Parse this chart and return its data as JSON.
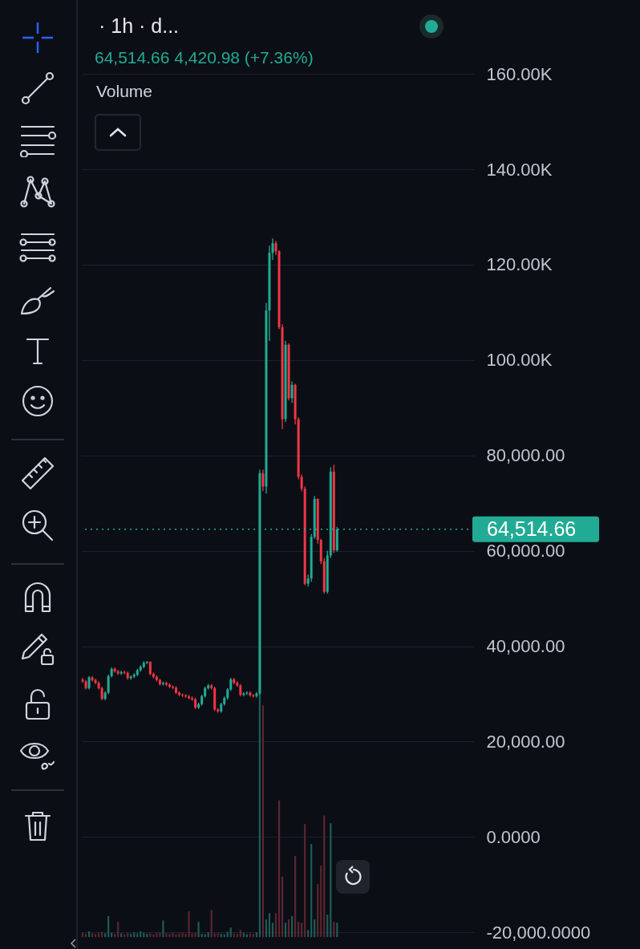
{
  "chart_data": {
    "type": "candlestick",
    "title": "· 1h · d...",
    "subtitle": "64,514.66 4,420.98 (+7.36%)",
    "annotations": [
      "Volume"
    ],
    "categories": [
      null,
      null,
      null,
      null,
      null,
      null,
      null,
      null,
      null,
      null,
      null,
      null,
      null,
      null,
      null,
      null,
      null,
      null,
      null,
      null,
      null,
      null,
      null,
      null,
      null,
      null,
      null,
      null,
      null,
      null,
      null,
      null,
      null,
      null,
      null,
      null,
      null,
      null,
      null,
      null,
      null,
      null,
      null,
      null,
      null,
      null,
      null,
      null,
      null,
      null,
      null,
      null,
      null,
      null,
      null,
      null,
      null,
      null,
      null,
      null,
      null,
      null,
      null,
      null,
      null,
      null,
      null,
      null,
      null,
      null,
      null,
      null,
      null,
      null,
      null,
      null,
      null,
      null,
      null,
      null,
      null,
      null,
      null,
      null,
      null,
      null,
      null,
      null,
      null,
      null,
      null,
      null,
      null,
      null,
      null,
      null,
      null,
      null,
      null,
      null,
      null,
      null,
      null,
      null,
      null,
      null,
      null,
      null,
      null,
      null,
      null,
      null,
      null,
      null,
      null,
      null,
      null,
      null,
      null,
      null,
      null,
      null
    ],
    "ohlc": [
      [
        33000,
        33300,
        32300,
        32605
      ],
      [
        32605,
        32900,
        30900,
        31205
      ],
      [
        31205,
        33750,
        30900,
        33446
      ],
      [
        33446,
        33750,
        32590,
        32886
      ],
      [
        32886,
        33190,
        32025,
        32325
      ],
      [
        32325,
        32625,
        30905,
        31205
      ],
      [
        31205,
        31505,
        28664,
        28964
      ],
      [
        28964,
        30555,
        28664,
        30253
      ],
      [
        30253,
        34025,
        29953,
        33726
      ],
      [
        33726,
        35540,
        33425,
        35238
      ],
      [
        35238,
        35540,
        34435,
        34735
      ],
      [
        34735,
        35035,
        33985,
        34287
      ],
      [
        34287,
        34870,
        33985,
        34567
      ],
      [
        34567,
        34870,
        34100,
        34399
      ],
      [
        34399,
        34700,
        32980,
        33278
      ],
      [
        33278,
        33915,
        32980,
        33614
      ],
      [
        33614,
        34310,
        33315,
        34007
      ],
      [
        34007,
        35260,
        33705,
        34959
      ],
      [
        34959,
        35990,
        34660,
        35687
      ],
      [
        35687,
        36830,
        35385,
        36527
      ],
      [
        36527,
        36900,
        36225,
        36700
      ],
      [
        36700,
        36830,
        33875,
        34175
      ],
      [
        34175,
        34475,
        33258,
        33558
      ],
      [
        33558,
        33860,
        32585,
        32886
      ],
      [
        32886,
        33185,
        31745,
        32045
      ],
      [
        32045,
        32570,
        31745,
        32269
      ],
      [
        32269,
        32570,
        31633,
        31933
      ],
      [
        31933,
        32235,
        31185,
        31485
      ],
      [
        31485,
        31785,
        31000,
        31300
      ],
      [
        31300,
        31600,
        29953,
        30253
      ],
      [
        30253,
        30555,
        29505,
        29805
      ],
      [
        29805,
        30105,
        29350,
        29650
      ],
      [
        29650,
        29950,
        29169,
        29469
      ],
      [
        29469,
        29770,
        28833,
        29133
      ],
      [
        29133,
        29435,
        28553,
        28853
      ],
      [
        28853,
        29155,
        26816,
        27116
      ],
      [
        27116,
        28145,
        26816,
        27844
      ],
      [
        27844,
        29825,
        27544,
        29525
      ],
      [
        29525,
        31505,
        29225,
        31205
      ],
      [
        31205,
        32065,
        30905,
        31765
      ],
      [
        31765,
        32065,
        30905,
        31205
      ],
      [
        31205,
        31505,
        26423,
        26723
      ],
      [
        26723,
        27025,
        26031,
        26331
      ],
      [
        26331,
        28145,
        26031,
        27844
      ],
      [
        27844,
        29435,
        27544,
        29133
      ],
      [
        29133,
        31225,
        28833,
        30925
      ],
      [
        30925,
        33355,
        30625,
        33054
      ],
      [
        33054,
        33355,
        32025,
        32325
      ],
      [
        32325,
        32625,
        31465,
        31765
      ],
      [
        31765,
        32065,
        29505,
        29805
      ],
      [
        29805,
        30385,
        29505,
        30085
      ],
      [
        30085,
        30555,
        29785,
        30253
      ],
      [
        30253,
        30555,
        29393,
        29693
      ],
      [
        29693,
        29995,
        29225,
        29525
      ],
      [
        29525,
        30385,
        29225,
        30085
      ],
      [
        30085,
        77000,
        29800,
        76300
      ],
      [
        76300,
        77000,
        72500,
        73500
      ],
      [
        73500,
        112000,
        72000,
        110400
      ],
      [
        110400,
        124000,
        104000,
        122500
      ],
      [
        122500,
        125500,
        121000,
        124500
      ],
      [
        124500,
        125000,
        122000,
        122800
      ],
      [
        122800,
        123000,
        106500,
        106900
      ],
      [
        106900,
        107500,
        85500,
        87600
      ],
      [
        87600,
        104000,
        87000,
        103200
      ],
      [
        103200,
        103500,
        91500,
        92000
      ],
      [
        92000,
        95500,
        91000,
        94800
      ],
      [
        94800,
        95000,
        86500,
        87600
      ],
      [
        87600,
        88000,
        75000,
        75500
      ],
      [
        75500,
        76000,
        72500,
        73000
      ],
      [
        73000,
        73500,
        52800,
        53100
      ],
      [
        53100,
        55000,
        52500,
        54200
      ],
      [
        54200,
        63500,
        53500,
        62900
      ],
      [
        62900,
        71500,
        62500,
        70900
      ],
      [
        70900,
        71000,
        61500,
        62300
      ],
      [
        62300,
        62500,
        57200,
        57800
      ],
      [
        57800,
        58500,
        51000,
        51400
      ],
      [
        51400,
        60000,
        51000,
        59000
      ],
      [
        59000,
        77500,
        58500,
        76600
      ],
      [
        76600,
        78000,
        59500,
        60093.68
      ],
      [
        60093.68,
        65000,
        59800,
        64514.66
      ],
      null,
      null,
      null,
      null,
      null,
      null,
      null,
      null,
      null,
      null,
      null,
      null,
      null,
      null,
      null,
      null,
      null,
      null,
      null,
      null,
      null,
      null,
      null,
      null,
      null,
      null,
      null,
      null,
      null,
      null,
      null,
      null,
      null,
      null,
      null,
      null,
      null,
      null,
      null,
      null,
      null,
      null
    ],
    "colors": [
      "#f23645",
      "#f23645",
      "#22ab94",
      "#f23645",
      "#f23645",
      "#f23645",
      "#f23645",
      "#22ab94",
      "#22ab94",
      "#22ab94",
      "#f23645",
      "#f23645",
      "#22ab94",
      "#f23645",
      "#f23645",
      "#22ab94",
      "#22ab94",
      "#22ab94",
      "#22ab94",
      "#22ab94",
      "#22ab94",
      "#f23645",
      "#f23645",
      "#f23645",
      "#f23645",
      "#22ab94",
      "#f23645",
      "#f23645",
      "#f23645",
      "#f23645",
      "#f23645",
      "#f23645",
      "#f23645",
      "#f23645",
      "#f23645",
      "#f23645",
      "#22ab94",
      "#22ab94",
      "#22ab94",
      "#22ab94",
      "#f23645",
      "#f23645",
      "#f23645",
      "#22ab94",
      "#22ab94",
      "#22ab94",
      "#22ab94",
      "#f23645",
      "#f23645",
      "#f23645",
      "#22ab94",
      "#22ab94",
      "#f23645",
      "#f23645",
      "#22ab94",
      "#22ab94",
      "#f23645",
      "#22ab94",
      "#22ab94",
      "#22ab94",
      "#f23645",
      "#f23645",
      "#f23645",
      "#22ab94",
      "#f23645",
      "#22ab94",
      "#f23645",
      "#f23645",
      "#f23645",
      "#f23645",
      "#22ab94",
      "#22ab94",
      "#22ab94",
      "#f23645",
      "#f23645",
      "#f23645",
      "#22ab94",
      "#22ab94",
      "#f23645",
      "#22ab94",
      null,
      null,
      null,
      null,
      null,
      null,
      null,
      null,
      null,
      null,
      null,
      null,
      null,
      null,
      null,
      null,
      null,
      null,
      null,
      null,
      null,
      null,
      null,
      null,
      null,
      null,
      null,
      null,
      null,
      null,
      null,
      null,
      null,
      null,
      null,
      null,
      null,
      null,
      null,
      null,
      null,
      null
    ],
    "series": [
      {
        "type": "bar",
        "values": [
          900,
          700,
          1200,
          800,
          600,
          900,
          1100,
          800,
          4400,
          900,
          700,
          3200,
          800,
          600,
          900,
          700,
          1000,
          800,
          1200,
          900,
          700,
          800,
          600,
          900,
          1000,
          3500,
          800,
          700,
          900,
          600,
          800,
          1000,
          700,
          5400,
          800,
          900,
          3200,
          700,
          600,
          1000,
          5700,
          800,
          900,
          700,
          600,
          1100,
          2000,
          800,
          700,
          1500,
          900,
          600,
          800,
          700,
          1000,
          52000,
          48600,
          3700,
          5000,
          3000,
          5000,
          28700,
          12700,
          3000,
          3700,
          4400,
          17000,
          3200,
          3000,
          23700,
          1500,
          19500,
          3700,
          11100,
          15000,
          25500,
          4700,
          23900,
          3200,
          3000,
          null,
          null,
          null,
          null,
          null,
          null,
          null,
          null,
          null,
          null,
          null,
          null,
          null,
          null,
          null,
          null,
          null,
          null,
          null,
          null,
          null,
          null,
          null,
          null,
          null,
          null,
          null,
          null,
          null,
          null,
          null,
          null,
          null,
          null,
          null,
          null,
          null,
          null,
          null,
          null,
          null,
          null
        ],
        "base": [
          -21000,
          -21000,
          -21000,
          -21000,
          -21000,
          -21000,
          -21000,
          -21000,
          -21000,
          -21000,
          -21000,
          -21000,
          -21000,
          -21000,
          -21000,
          -21000,
          -21000,
          -21000,
          -21000,
          -21000,
          -21000,
          -21000,
          -21000,
          -21000,
          -21000,
          -21000,
          -21000,
          -21000,
          -21000,
          -21000,
          -21000,
          -21000,
          -21000,
          -21000,
          -21000,
          -21000,
          -21000,
          -21000,
          -21000,
          -21000,
          -21000,
          -21000,
          -21000,
          -21000,
          -21000,
          -21000,
          -21000,
          -21000,
          -21000,
          -21000,
          -21000,
          -21000,
          -21000,
          -21000,
          -21000,
          -21000,
          -21000,
          -21000,
          -21000,
          -21000,
          -21000,
          -21000,
          -21000,
          -21000,
          -21000,
          -21000,
          -21000,
          -21000,
          -21000,
          -21000,
          -21000,
          -21000,
          -21000,
          -21000,
          -21000,
          -21000,
          -21000,
          -21000,
          -21000,
          -21000,
          null,
          null,
          null,
          null,
          null,
          null,
          null,
          null,
          null,
          null,
          null,
          null,
          null,
          null,
          null,
          null,
          null,
          null,
          null,
          null,
          null,
          null,
          null,
          null,
          null,
          null,
          null,
          null,
          null,
          null,
          null,
          null,
          null,
          null,
          null,
          null,
          null,
          null,
          null,
          null,
          null,
          null
        ],
        "colors": [
          "#5c2530",
          "#5c2530",
          "#1d5c58",
          "#5c2530",
          "#5c2530",
          "#5c2530",
          "#5c2530",
          "#1d5c58",
          "#1d5c58",
          "#1d5c58",
          "#5c2530",
          "#5c2530",
          "#1d5c58",
          "#5c2530",
          "#5c2530",
          "#1d5c58",
          "#1d5c58",
          "#1d5c58",
          "#1d5c58",
          "#1d5c58",
          "#1d5c58",
          "#5c2530",
          "#5c2530",
          "#5c2530",
          "#5c2530",
          "#1d5c58",
          "#5c2530",
          "#5c2530",
          "#5c2530",
          "#5c2530",
          "#5c2530",
          "#5c2530",
          "#5c2530",
          "#5c2530",
          "#5c2530",
          "#5c2530",
          "#1d5c58",
          "#1d5c58",
          "#1d5c58",
          "#1d5c58",
          "#5c2530",
          "#5c2530",
          "#5c2530",
          "#1d5c58",
          "#1d5c58",
          "#1d5c58",
          "#1d5c58",
          "#5c2530",
          "#5c2530",
          "#5c2530",
          "#1d5c58",
          "#1d5c58",
          "#5c2530",
          "#5c2530",
          "#1d5c58",
          "#1d5c58",
          "#5c2530",
          "#1d5c58",
          "#1d5c58",
          "#1d5c58",
          "#5c2530",
          "#5c2530",
          "#5c2530",
          "#1d5c58",
          "#5c2530",
          "#1d5c58",
          "#5c2530",
          "#5c2530",
          "#5c2530",
          "#5c2530",
          "#1d5c58",
          "#1d5c58",
          "#1d5c58",
          "#5c2530",
          "#5c2530",
          "#5c2530",
          "#1d5c58",
          "#1d5c58",
          "#5c2530",
          "#1d5c58",
          null,
          null,
          null,
          null,
          null,
          null,
          null,
          null,
          null,
          null,
          null,
          null,
          null,
          null,
          null,
          null,
          null,
          null,
          null,
          null,
          null,
          null,
          null,
          null,
          null,
          null,
          null,
          null,
          null,
          null,
          null,
          null,
          null,
          null,
          null,
          null,
          null,
          null,
          null,
          null,
          null,
          null
        ]
      }
    ],
    "ylim": [
      -23500,
      175500
    ],
    "yticks": [
      {
        "value": -20000,
        "label": "-20,000.0000"
      },
      {
        "value": 0,
        "label": "0.0000"
      },
      {
        "value": 20000,
        "label": "20,000.00"
      },
      {
        "value": 40000,
        "label": "40,000.00"
      },
      {
        "value": 60000,
        "label": "60,000.00"
      },
      {
        "value": 80000,
        "label": "80,000.00"
      },
      {
        "value": 100000,
        "label": "100.00K"
      },
      {
        "value": 120000,
        "label": "120.00K"
      },
      {
        "value": 140000,
        "label": "140.00K"
      },
      {
        "value": 160000,
        "label": "160.00K"
      }
    ],
    "grid": "y",
    "ref_lines": [
      {
        "axis": "y",
        "value": 64514.66,
        "label": "64,514.66",
        "color": "#22ab94",
        "line_style": "dotted"
      }
    ]
  }
}
